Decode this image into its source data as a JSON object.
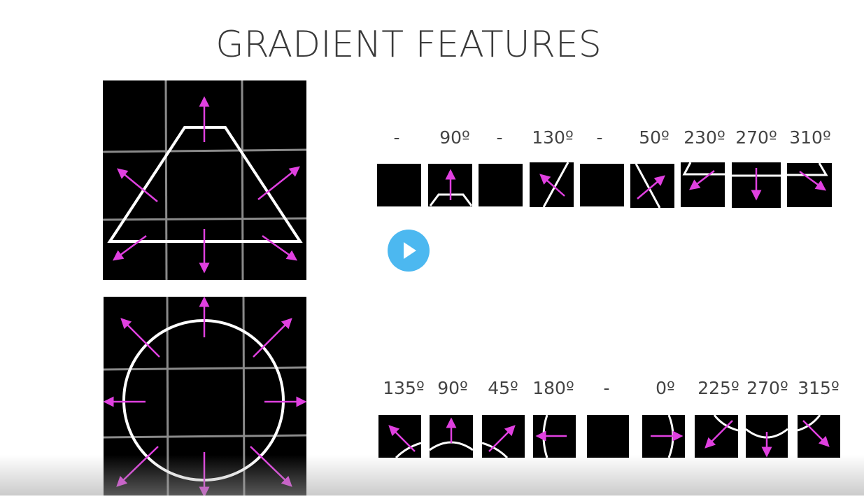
{
  "title": "GRADIENT FEATURES",
  "row1_labels": [
    "-",
    "90º",
    "-",
    "130º",
    "-",
    "50º",
    "230º",
    "270º",
    "310º"
  ],
  "row2_labels": [
    "135º",
    "90º",
    "45º",
    "180º",
    "-",
    "0º",
    "225º",
    "270º",
    "315º"
  ],
  "colors": {
    "arrow": "#e040e0",
    "grid": "#8a8a8a",
    "shape": "#ffffff",
    "play": "#4cb8f0"
  },
  "icons": {
    "play": "play-icon"
  }
}
